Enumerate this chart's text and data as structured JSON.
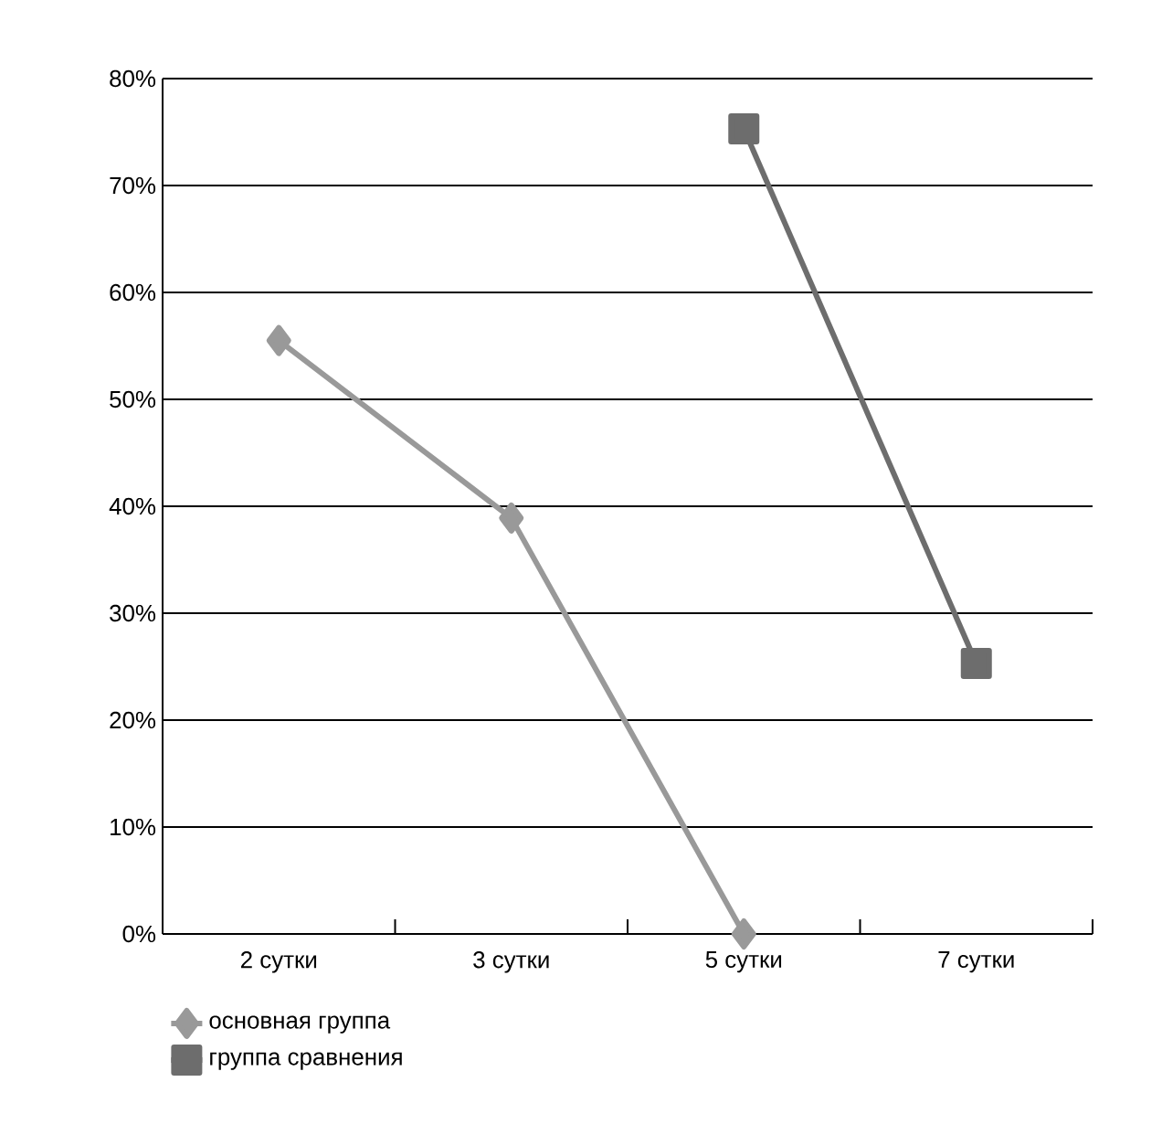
{
  "chart_data": {
    "type": "line",
    "categories": [
      "2 сутки",
      "3 сутки",
      "5 сутки",
      "7 сутки"
    ],
    "series": [
      {
        "name": "основная группа",
        "color": "#999999",
        "marker": "diamond",
        "values": [
          55.5,
          38.9,
          0,
          null
        ]
      },
      {
        "name": "группа сравнения",
        "color": "#6d6d6d",
        "marker": "square",
        "values": [
          null,
          null,
          75.3,
          25.3
        ]
      }
    ],
    "ylim": [
      0,
      80
    ],
    "yticks": [
      {
        "value": 0,
        "label": "0%"
      },
      {
        "value": 10,
        "label": "10%"
      },
      {
        "value": 20,
        "label": "20%"
      },
      {
        "value": 30,
        "label": "30%"
      },
      {
        "value": 40,
        "label": "40%"
      },
      {
        "value": 50,
        "label": "50%"
      },
      {
        "value": 60,
        "label": "60%"
      },
      {
        "value": 70,
        "label": "70%"
      },
      {
        "value": 80,
        "label": "80%"
      }
    ],
    "grid": "y",
    "legend": "bottom",
    "line_style": "solid"
  }
}
